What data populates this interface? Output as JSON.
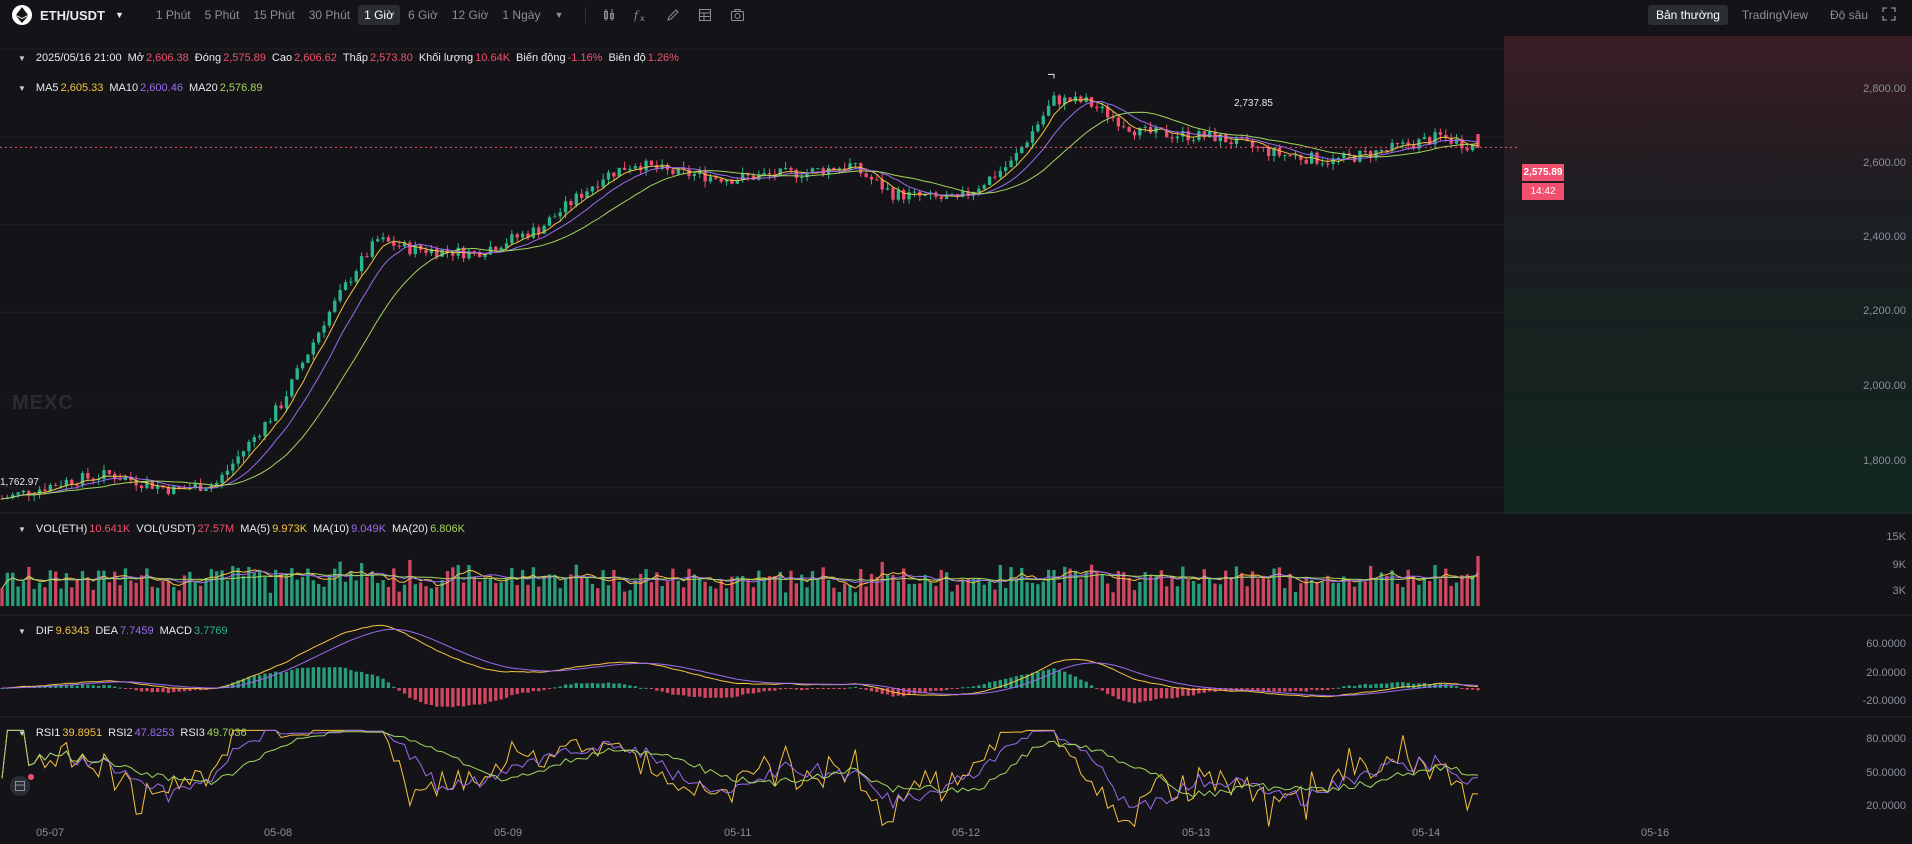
{
  "toolbar": {
    "symbol": "ETH/USDT",
    "intervals": [
      "1 Phút",
      "5 Phút",
      "15 Phút",
      "30 Phút",
      "1 Giờ",
      "6 Giờ",
      "12 Giờ",
      "1 Ngày"
    ],
    "active_interval": "1 Giờ",
    "view_tabs": [
      "Bản thường",
      "TradingView",
      "Độ sâu"
    ],
    "active_view": "Bản thường",
    "tool_icons": [
      "candle-style-icon",
      "indicator-icon",
      "draw-icon",
      "layout-icon",
      "camera-icon"
    ]
  },
  "price_legend": {
    "datetime": "2025/05/16 21:00",
    "open_label": "Mở",
    "open": "2,606.38",
    "close_label": "Đóng",
    "close": "2,575.89",
    "high_label": "Cao",
    "high": "2,606.62",
    "low_label": "Thấp",
    "low": "2,573.80",
    "volume_label": "Khối lượng",
    "volume": "10.64K",
    "change_label": "Biến động",
    "change": "-1.16%",
    "amplitude_label": "Biên độ",
    "amplitude": "1.26%"
  },
  "ma_legend": {
    "ma5_label": "MA5",
    "ma5": "2,605.33",
    "ma10_label": "MA10",
    "ma10": "2,600.46",
    "ma20_label": "MA20",
    "ma20": "2,576.89"
  },
  "vol_legend": {
    "eth_label": "VOL(ETH)",
    "eth": "10.641K",
    "usdt_label": "VOL(USDT)",
    "usdt": "27.57M",
    "ma5_label": "MA(5)",
    "ma5": "9.973K",
    "ma10_label": "MA(10)",
    "ma10": "9.049K",
    "ma20_label": "MA(20)",
    "ma20": "6.806K"
  },
  "macd_legend": {
    "dif_label": "DIF",
    "dif": "9.6343",
    "dea_label": "DEA",
    "dea": "7.7459",
    "macd_label": "MACD",
    "macd": "3.7769"
  },
  "rsi_legend": {
    "rsi1_label": "RSI1",
    "rsi1": "39.8951",
    "rsi2_label": "RSI2",
    "rsi2": "47.8253",
    "rsi3_label": "RSI3",
    "rsi3": "49.7036"
  },
  "price_axis": [
    "2,800.00",
    "2,600.00",
    "2,400.00",
    "2,200.00",
    "2,000.00",
    "1,800.00"
  ],
  "vol_axis": [
    "15K",
    "9K",
    "3K"
  ],
  "macd_axis": [
    "60.0000",
    "20.0000",
    "-20.0000"
  ],
  "rsi_axis": [
    "80.0000",
    "50.0000",
    "20.0000"
  ],
  "current_price": "2,575.89",
  "countdown": "14:42",
  "max_marker": "2,737.85",
  "min_marker": "1,762.97",
  "watermark": "MEXC",
  "x_labels": [
    "05-07",
    "05-08",
    "05-09",
    "05-11",
    "05-12",
    "05-13",
    "05-14",
    "05-16"
  ],
  "colors": {
    "up": "#2bb58b",
    "down": "#f0506e",
    "ma5": "#f5c342",
    "ma10": "#9a6bf0",
    "ma20": "#a4d65e",
    "bg": "#141418"
  },
  "chart_data": {
    "type": "candlestick",
    "pair": "ETH/USDT",
    "interval": "1 Giờ",
    "x_ticks": [
      "05-07",
      "05-08",
      "05-09",
      "05-11",
      "05-12",
      "05-13",
      "05-14",
      "05-16"
    ],
    "price_range": [
      1740,
      2830
    ],
    "anchors": [
      {
        "t": 0,
        "p": 1775
      },
      {
        "t": 12,
        "p": 1815
      },
      {
        "t": 20,
        "p": 1830
      },
      {
        "t": 32,
        "p": 1795
      },
      {
        "t": 40,
        "p": 1810
      },
      {
        "t": 52,
        "p": 1990
      },
      {
        "t": 60,
        "p": 2180
      },
      {
        "t": 66,
        "p": 2300
      },
      {
        "t": 70,
        "p": 2365
      },
      {
        "t": 76,
        "p": 2345
      },
      {
        "t": 88,
        "p": 2335
      },
      {
        "t": 100,
        "p": 2390
      },
      {
        "t": 112,
        "p": 2510
      },
      {
        "t": 118,
        "p": 2540
      },
      {
        "t": 124,
        "p": 2520
      },
      {
        "t": 136,
        "p": 2505
      },
      {
        "t": 150,
        "p": 2520
      },
      {
        "t": 158,
        "p": 2535
      },
      {
        "t": 166,
        "p": 2470
      },
      {
        "t": 178,
        "p": 2455
      },
      {
        "t": 188,
        "p": 2540
      },
      {
        "t": 196,
        "p": 2685
      },
      {
        "t": 202,
        "p": 2680
      },
      {
        "t": 212,
        "p": 2610
      },
      {
        "t": 226,
        "p": 2600
      },
      {
        "t": 238,
        "p": 2560
      },
      {
        "t": 248,
        "p": 2545
      },
      {
        "t": 258,
        "p": 2570
      },
      {
        "t": 268,
        "p": 2600
      },
      {
        "t": 275,
        "p": 2576
      }
    ],
    "last": {
      "open": 2606.38,
      "close": 2575.89,
      "high": 2606.62,
      "low": 2573.8,
      "volume_eth": 10641
    },
    "ma": {
      "ma5": 2605.33,
      "ma10": 2600.46,
      "ma20": 2576.89
    },
    "high_marker": 2737.85,
    "low_marker": 1762.97,
    "volume_axis": [
      15000,
      9000,
      3000
    ],
    "macd_axis": [
      60,
      20,
      -20
    ],
    "rsi_axis": [
      80,
      50,
      20
    ],
    "macd_last": {
      "dif": 9.6343,
      "dea": 7.7459,
      "macd": 3.7769
    },
    "rsi_last": {
      "rsi1": 39.8951,
      "rsi2": 47.8253,
      "rsi3": 49.7036
    }
  }
}
